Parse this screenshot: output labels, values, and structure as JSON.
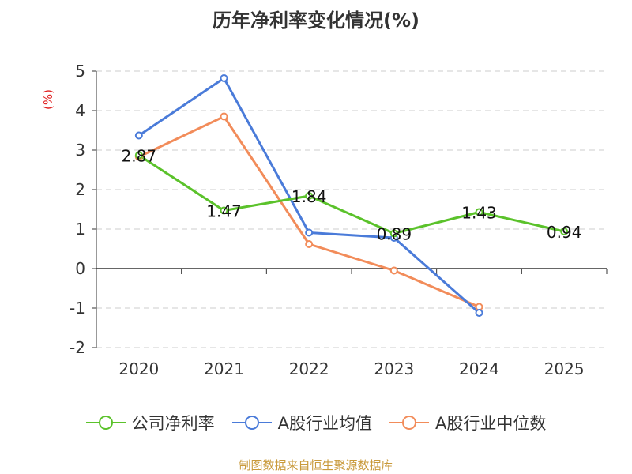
{
  "chart_data": {
    "type": "line",
    "title": "历年净利率变化情况(%)",
    "ylabel": "(%)",
    "xlabel": "",
    "ylim": [
      -2,
      5
    ],
    "yticks": [
      5,
      4,
      3,
      2,
      1,
      0,
      -1,
      -2
    ],
    "categories": [
      "2020",
      "2021",
      "2022",
      "2023",
      "2024",
      "2025"
    ],
    "grid": true,
    "legend_position": "bottom",
    "series": [
      {
        "name": "公司净利率",
        "color": "#5bc22b",
        "values": [
          2.87,
          1.47,
          1.84,
          0.89,
          1.43,
          0.94
        ],
        "labels": [
          "2.87",
          "1.47",
          "1.84",
          "0.89",
          "1.43",
          "0.94"
        ]
      },
      {
        "name": "A股行业均值",
        "color": "#4a7bd9",
        "values": [
          3.37,
          4.82,
          0.91,
          0.78,
          -1.12,
          null
        ]
      },
      {
        "name": "A股行业中位数",
        "color": "#f28c5a",
        "values": [
          2.83,
          3.85,
          0.62,
          -0.05,
          -0.97,
          null
        ]
      }
    ]
  },
  "source": "制图数据来自恒生聚源数据库"
}
